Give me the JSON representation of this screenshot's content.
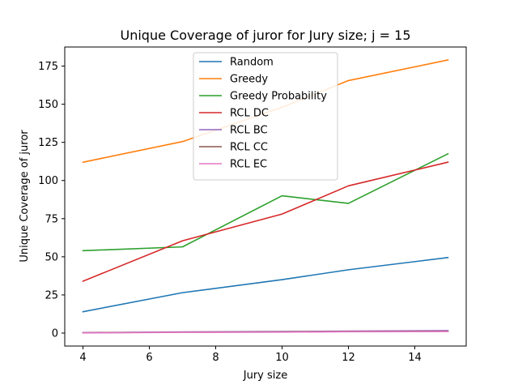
{
  "chart_data": {
    "type": "line",
    "title": "Unique Coverage of juror for Jury size; j = 15",
    "xlabel": "Jury size",
    "ylabel": "Unique Coverage of juror",
    "xlim": [
      3.45,
      15.55
    ],
    "ylim": [
      -8.5,
      187.5
    ],
    "xticks": [
      4,
      6,
      8,
      10,
      12,
      14
    ],
    "yticks": [
      0,
      25,
      50,
      75,
      100,
      125,
      150,
      175
    ],
    "x": [
      4,
      7,
      10,
      12,
      15
    ],
    "grid": false,
    "legend_position": "upper center",
    "series": [
      {
        "name": "Random",
        "color": "#1f77b4",
        "values": [
          14,
          26.5,
          35,
          41.5,
          49.5
        ]
      },
      {
        "name": "Greedy",
        "color": "#ff7f0e",
        "values": [
          112,
          125.5,
          148,
          165.5,
          179
        ]
      },
      {
        "name": "Greedy Probability",
        "color": "#2ca02c",
        "values": [
          54,
          56.5,
          90,
          85,
          117.5
        ]
      },
      {
        "name": "RCL DC",
        "color": "#d62728",
        "values": [
          34,
          60.5,
          78,
          96.5,
          112
        ]
      },
      {
        "name": "RCL BC",
        "color": "#9467bd",
        "values": [
          0.3,
          0.8,
          1,
          1.3,
          1.6
        ]
      },
      {
        "name": "RCL CC",
        "color": "#8c564b",
        "values": [
          0.2,
          0.6,
          0.8,
          1,
          1.2
        ]
      },
      {
        "name": "RCL EC",
        "color": "#e377c2",
        "values": [
          0.1,
          0.5,
          0.6,
          0.9,
          1
        ]
      }
    ]
  }
}
